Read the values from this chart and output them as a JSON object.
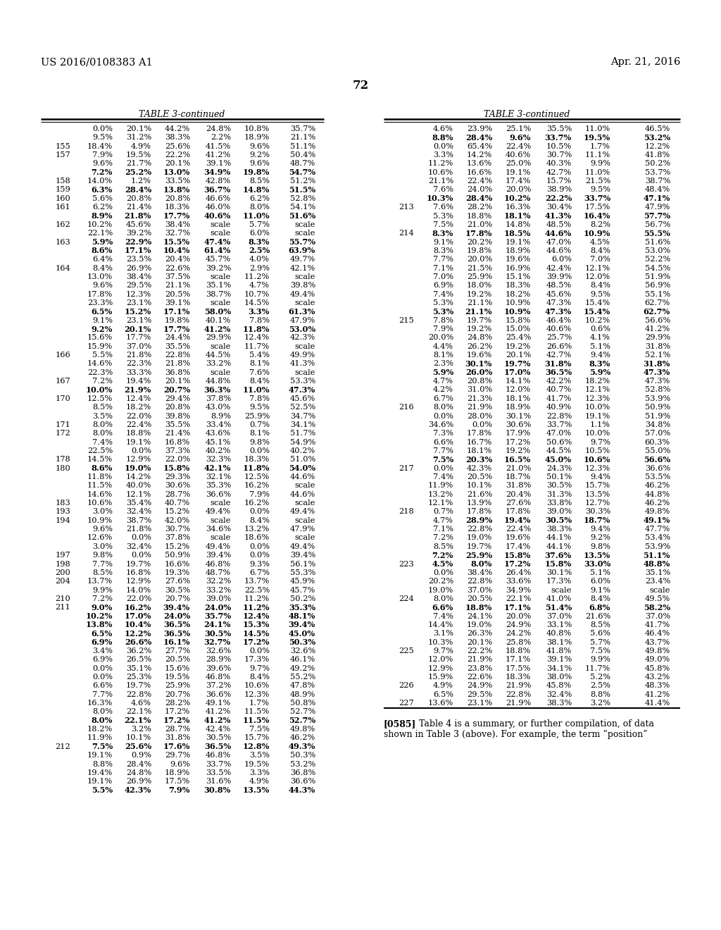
{
  "header_left": "US 2016/0108383 A1",
  "header_right": "Apr. 21, 2016",
  "page_number": "72",
  "table_title": "TABLE 3-continued",
  "background": "#ffffff",
  "left_table": [
    [
      "",
      "0.0%",
      "20.1%",
      "44.2%",
      "24.8%",
      "10.8%",
      "35.7%"
    ],
    [
      "",
      "9.5%",
      "31.2%",
      "38.3%",
      "2.2%",
      "18.9%",
      "21.1%"
    ],
    [
      "155",
      "18.4%",
      "4.9%",
      "25.6%",
      "41.5%",
      "9.6%",
      "51.1%"
    ],
    [
      "157",
      "7.9%",
      "19.5%",
      "22.2%",
      "41.2%",
      "9.2%",
      "50.4%"
    ],
    [
      "",
      "9.6%",
      "21.7%",
      "20.1%",
      "39.1%",
      "9.6%",
      "48.7%"
    ],
    [
      "",
      "B:7.2%",
      "B:25.2%",
      "B:13.0%",
      "B:34.9%",
      "B:19.8%",
      "B:54.7%"
    ],
    [
      "158",
      "14.0%",
      "1.2%",
      "33.5%",
      "42.8%",
      "8.5%",
      "51.2%"
    ],
    [
      "159",
      "B:6.3%",
      "B:28.4%",
      "B:13.8%",
      "B:36.7%",
      "B:14.8%",
      "B:51.5%"
    ],
    [
      "160",
      "5.6%",
      "20.8%",
      "20.8%",
      "46.6%",
      "6.2%",
      "52.8%"
    ],
    [
      "161",
      "6.2%",
      "21.4%",
      "18.3%",
      "46.0%",
      "8.0%",
      "54.1%"
    ],
    [
      "",
      "B:8.9%",
      "B:21.8%",
      "B:17.7%",
      "B:40.6%",
      "B:11.0%",
      "B:51.6%"
    ],
    [
      "162",
      "10.2%",
      "45.6%",
      "38.4%",
      "scale",
      "5.7%",
      "scale"
    ],
    [
      "",
      "22.1%",
      "39.2%",
      "32.7%",
      "scale",
      "6.0%",
      "scale"
    ],
    [
      "163",
      "B:5.9%",
      "B:22.9%",
      "B:15.5%",
      "B:47.4%",
      "B:8.3%",
      "B:55.7%"
    ],
    [
      "",
      "B:8.6%",
      "B:17.1%",
      "B:10.4%",
      "B:61.4%",
      "B:2.5%",
      "B:63.9%"
    ],
    [
      "",
      "6.4%",
      "23.5%",
      "20.4%",
      "45.7%",
      "4.0%",
      "49.7%"
    ],
    [
      "164",
      "8.4%",
      "26.9%",
      "22.6%",
      "39.2%",
      "2.9%",
      "42.1%"
    ],
    [
      "",
      "13.0%",
      "38.4%",
      "37.5%",
      "scale",
      "11.2%",
      "scale"
    ],
    [
      "",
      "9.6%",
      "29.5%",
      "21.1%",
      "35.1%",
      "4.7%",
      "39.8%"
    ],
    [
      "",
      "17.8%",
      "12.3%",
      "20.5%",
      "38.7%",
      "10.7%",
      "49.4%"
    ],
    [
      "",
      "23.3%",
      "23.1%",
      "39.1%",
      "scale",
      "14.5%",
      "scale"
    ],
    [
      "",
      "B:6.5%",
      "B:15.2%",
      "B:17.1%",
      "B:58.0%",
      "B:3.3%",
      "B:61.3%"
    ],
    [
      "",
      "9.1%",
      "23.1%",
      "19.8%",
      "40.1%",
      "7.8%",
      "47.9%"
    ],
    [
      "",
      "B:9.2%",
      "B:20.1%",
      "B:17.7%",
      "B:41.2%",
      "B:11.8%",
      "B:53.0%"
    ],
    [
      "",
      "15.6%",
      "17.7%",
      "24.4%",
      "29.9%",
      "12.4%",
      "42.3%"
    ],
    [
      "",
      "15.9%",
      "37.0%",
      "35.5%",
      "scale",
      "11.7%",
      "scale"
    ],
    [
      "166",
      "5.5%",
      "21.8%",
      "22.8%",
      "44.5%",
      "5.4%",
      "49.9%"
    ],
    [
      "",
      "14.6%",
      "22.3%",
      "21.8%",
      "33.2%",
      "8.1%",
      "41.3%"
    ],
    [
      "",
      "22.3%",
      "33.3%",
      "36.8%",
      "scale",
      "7.6%",
      "scale"
    ],
    [
      "167",
      "7.2%",
      "19.4%",
      "20.1%",
      "44.8%",
      "8.4%",
      "53.3%"
    ],
    [
      "",
      "B:10.0%",
      "B:21.9%",
      "B:20.7%",
      "B:36.3%",
      "B:11.0%",
      "B:47.3%"
    ],
    [
      "170",
      "12.5%",
      "12.4%",
      "29.4%",
      "37.8%",
      "7.8%",
      "45.6%"
    ],
    [
      "",
      "8.5%",
      "18.2%",
      "20.8%",
      "43.0%",
      "9.5%",
      "52.5%"
    ],
    [
      "",
      "3.5%",
      "22.0%",
      "39.8%",
      "8.9%",
      "25.9%",
      "34.7%"
    ],
    [
      "171",
      "8.0%",
      "22.4%",
      "35.5%",
      "33.4%",
      "0.7%",
      "34.1%"
    ],
    [
      "172",
      "8.0%",
      "18.8%",
      "21.4%",
      "43.6%",
      "8.1%",
      "51.7%"
    ],
    [
      "",
      "7.4%",
      "19.1%",
      "16.8%",
      "45.1%",
      "9.8%",
      "54.9%"
    ],
    [
      "",
      "22.5%",
      "0.0%",
      "37.3%",
      "40.2%",
      "0.0%",
      "40.2%"
    ],
    [
      "178",
      "14.5%",
      "12.9%",
      "22.0%",
      "32.3%",
      "18.3%",
      "51.0%"
    ],
    [
      "180",
      "B:8.6%",
      "B:19.0%",
      "B:15.8%",
      "B:42.1%",
      "B:11.8%",
      "B:54.0%"
    ],
    [
      "",
      "11.8%",
      "14.2%",
      "29.3%",
      "32.1%",
      "12.5%",
      "44.6%"
    ],
    [
      "",
      "11.5%",
      "40.0%",
      "30.6%",
      "35.3%",
      "16.2%",
      "scale"
    ],
    [
      "",
      "14.6%",
      "12.1%",
      "28.7%",
      "36.6%",
      "7.9%",
      "44.6%"
    ],
    [
      "183",
      "10.6%",
      "35.4%",
      "40.7%",
      "scale",
      "16.2%",
      "scale"
    ],
    [
      "193",
      "3.0%",
      "32.4%",
      "15.2%",
      "49.4%",
      "0.0%",
      "49.4%"
    ],
    [
      "194",
      "10.9%",
      "38.7%",
      "42.0%",
      "scale",
      "8.4%",
      "scale"
    ],
    [
      "",
      "9.6%",
      "21.8%",
      "30.7%",
      "34.6%",
      "13.2%",
      "47.9%"
    ],
    [
      "",
      "12.6%",
      "0.0%",
      "37.8%",
      "scale",
      "18.6%",
      "scale"
    ],
    [
      "",
      "3.0%",
      "32.4%",
      "15.2%",
      "49.4%",
      "0.0%",
      "49.4%"
    ],
    [
      "197",
      "9.8%",
      "0.0%",
      "50.9%",
      "39.4%",
      "0.0%",
      "39.4%"
    ],
    [
      "198",
      "7.7%",
      "19.7%",
      "16.6%",
      "46.8%",
      "9.3%",
      "56.1%"
    ],
    [
      "200",
      "8.5%",
      "16.8%",
      "19.3%",
      "48.7%",
      "6.7%",
      "55.3%"
    ],
    [
      "204",
      "13.7%",
      "12.9%",
      "27.6%",
      "32.2%",
      "13.7%",
      "45.9%"
    ],
    [
      "",
      "9.9%",
      "14.0%",
      "30.5%",
      "33.2%",
      "22.5%",
      "45.7%"
    ],
    [
      "210",
      "7.2%",
      "22.0%",
      "20.7%",
      "39.0%",
      "11.2%",
      "50.2%"
    ],
    [
      "211",
      "B:9.0%",
      "B:16.2%",
      "B:39.4%",
      "B:24.0%",
      "B:11.2%",
      "B:35.3%"
    ],
    [
      "",
      "B:10.2%",
      "B:17.0%",
      "B:24.0%",
      "B:35.7%",
      "B:12.4%",
      "B:48.1%"
    ],
    [
      "",
      "B:13.8%",
      "B:10.4%",
      "B:36.5%",
      "B:24.1%",
      "B:15.3%",
      "B:39.4%"
    ],
    [
      "",
      "B:6.5%",
      "B:12.2%",
      "B:36.5%",
      "B:30.5%",
      "B:14.5%",
      "B:45.0%"
    ],
    [
      "",
      "B:6.9%",
      "B:26.6%",
      "B:16.1%",
      "B:32.7%",
      "B:17.2%",
      "B:50.3%"
    ],
    [
      "",
      "3.4%",
      "36.2%",
      "27.7%",
      "32.6%",
      "0.0%",
      "32.6%"
    ],
    [
      "",
      "6.9%",
      "26.5%",
      "20.5%",
      "28.9%",
      "17.3%",
      "46.1%"
    ],
    [
      "",
      "0.0%",
      "35.1%",
      "15.6%",
      "39.6%",
      "9.7%",
      "49.2%"
    ],
    [
      "",
      "0.0%",
      "25.3%",
      "19.5%",
      "46.8%",
      "8.4%",
      "55.2%"
    ],
    [
      "",
      "6.6%",
      "19.7%",
      "25.9%",
      "37.2%",
      "10.6%",
      "47.8%"
    ],
    [
      "",
      "7.7%",
      "22.8%",
      "20.7%",
      "36.6%",
      "12.3%",
      "48.9%"
    ],
    [
      "",
      "16.3%",
      "4.6%",
      "28.2%",
      "49.1%",
      "1.7%",
      "50.8%"
    ],
    [
      "",
      "8.0%",
      "22.1%",
      "17.2%",
      "41.2%",
      "11.5%",
      "52.7%"
    ],
    [
      "",
      "B:8.0%",
      "B:22.1%",
      "B:17.2%",
      "B:41.2%",
      "B:11.5%",
      "B:52.7%"
    ],
    [
      "",
      "18.2%",
      "3.2%",
      "28.7%",
      "42.4%",
      "7.5%",
      "49.8%"
    ],
    [
      "",
      "11.9%",
      "10.1%",
      "31.8%",
      "30.5%",
      "15.7%",
      "46.2%"
    ],
    [
      "212",
      "B:7.5%",
      "B:25.6%",
      "B:17.6%",
      "B:36.5%",
      "B:12.8%",
      "B:49.3%"
    ],
    [
      "",
      "19.1%",
      "0.9%",
      "29.7%",
      "46.8%",
      "3.5%",
      "50.3%"
    ],
    [
      "",
      "8.8%",
      "28.4%",
      "9.6%",
      "33.7%",
      "19.5%",
      "53.2%"
    ],
    [
      "",
      "19.4%",
      "24.8%",
      "18.9%",
      "33.5%",
      "3.3%",
      "36.8%"
    ],
    [
      "",
      "19.1%",
      "26.9%",
      "17.5%",
      "31.6%",
      "4.9%",
      "36.6%"
    ],
    [
      "",
      "B:5.5%",
      "B:42.3%",
      "B:7.9%",
      "B:30.8%",
      "B:13.5%",
      "B:44.3%"
    ]
  ],
  "right_table": [
    [
      "",
      "4.6%",
      "23.9%",
      "25.1%",
      "35.5%",
      "11.0%",
      "46.5%"
    ],
    [
      "",
      "B:8.8%",
      "B:28.4%",
      "B:9.6%",
      "B:33.7%",
      "B:19.5%",
      "B:53.2%"
    ],
    [
      "",
      "0.0%",
      "65.4%",
      "22.4%",
      "10.5%",
      "1.7%",
      "12.2%"
    ],
    [
      "",
      "3.3%",
      "14.2%",
      "40.6%",
      "30.7%",
      "11.1%",
      "41.8%"
    ],
    [
      "",
      "11.2%",
      "13.6%",
      "25.0%",
      "40.3%",
      "9.9%",
      "50.2%"
    ],
    [
      "",
      "10.6%",
      "16.6%",
      "19.1%",
      "42.7%",
      "11.0%",
      "53.7%"
    ],
    [
      "",
      "21.1%",
      "22.4%",
      "17.4%",
      "15.7%",
      "21.5%",
      "38.7%"
    ],
    [
      "",
      "7.6%",
      "24.0%",
      "20.0%",
      "38.9%",
      "9.5%",
      "48.4%"
    ],
    [
      "",
      "B:10.3%",
      "B:28.4%",
      "B:10.2%",
      "B:22.2%",
      "B:33.7%",
      "B:47.1%"
    ],
    [
      "213",
      "7.6%",
      "28.2%",
      "16.3%",
      "30.4%",
      "17.5%",
      "47.9%"
    ],
    [
      "",
      "5.3%",
      "18.8%",
      "B:18.1%",
      "B:41.3%",
      "B:16.4%",
      "B:57.7%"
    ],
    [
      "",
      "7.5%",
      "21.0%",
      "14.8%",
      "48.5%",
      "8.2%",
      "56.7%"
    ],
    [
      "214",
      "B:8.3%",
      "B:17.8%",
      "B:18.5%",
      "B:44.6%",
      "B:10.9%",
      "B:55.5%"
    ],
    [
      "",
      "9.1%",
      "20.2%",
      "19.1%",
      "47.0%",
      "4.5%",
      "51.6%"
    ],
    [
      "",
      "8.3%",
      "19.8%",
      "18.9%",
      "44.6%",
      "8.4%",
      "53.0%"
    ],
    [
      "",
      "7.7%",
      "20.0%",
      "19.6%",
      "6.0%",
      "7.0%",
      "52.2%"
    ],
    [
      "",
      "7.1%",
      "21.5%",
      "16.9%",
      "42.4%",
      "12.1%",
      "54.5%"
    ],
    [
      "",
      "7.0%",
      "25.9%",
      "15.1%",
      "39.9%",
      "12.0%",
      "51.9%"
    ],
    [
      "",
      "6.9%",
      "18.0%",
      "18.3%",
      "48.5%",
      "8.4%",
      "56.9%"
    ],
    [
      "",
      "7.4%",
      "19.2%",
      "18.2%",
      "45.6%",
      "9.5%",
      "55.1%"
    ],
    [
      "",
      "5.3%",
      "21.1%",
      "10.9%",
      "47.3%",
      "15.4%",
      "62.7%"
    ],
    [
      "",
      "B:5.3%",
      "B:21.1%",
      "B:10.9%",
      "B:47.3%",
      "B:15.4%",
      "B:62.7%"
    ],
    [
      "215",
      "7.8%",
      "19.7%",
      "15.8%",
      "46.4%",
      "10.2%",
      "56.6%"
    ],
    [
      "",
      "7.9%",
      "19.2%",
      "15.0%",
      "40.6%",
      "0.6%",
      "41.2%"
    ],
    [
      "",
      "20.0%",
      "24.8%",
      "25.4%",
      "25.7%",
      "4.1%",
      "29.9%"
    ],
    [
      "",
      "4.4%",
      "26.2%",
      "19.2%",
      "26.6%",
      "5.1%",
      "31.8%"
    ],
    [
      "",
      "8.1%",
      "19.6%",
      "20.1%",
      "42.7%",
      "9.4%",
      "52.1%"
    ],
    [
      "",
      "2.3%",
      "B:30.1%",
      "B:19.7%",
      "B:31.8%",
      "B:8.3%",
      "B:31.8%"
    ],
    [
      "",
      "B:5.9%",
      "B:26.0%",
      "B:17.0%",
      "B:36.5%",
      "B:5.9%",
      "B:47.3%"
    ],
    [
      "",
      "4.7%",
      "20.8%",
      "14.1%",
      "42.2%",
      "18.2%",
      "47.3%"
    ],
    [
      "",
      "4.2%",
      "31.0%",
      "12.0%",
      "40.7%",
      "12.1%",
      "52.8%"
    ],
    [
      "",
      "6.7%",
      "21.3%",
      "18.1%",
      "41.7%",
      "12.3%",
      "53.9%"
    ],
    [
      "216",
      "8.0%",
      "21.9%",
      "18.9%",
      "40.9%",
      "10.0%",
      "50.9%"
    ],
    [
      "",
      "0.0%",
      "28.0%",
      "30.1%",
      "22.8%",
      "19.1%",
      "51.9%"
    ],
    [
      "",
      "34.6%",
      "0.0%",
      "30.6%",
      "33.7%",
      "1.1%",
      "34.8%"
    ],
    [
      "",
      "7.3%",
      "17.8%",
      "17.9%",
      "47.0%",
      "10.0%",
      "57.0%"
    ],
    [
      "",
      "6.6%",
      "16.7%",
      "17.2%",
      "50.6%",
      "9.7%",
      "60.3%"
    ],
    [
      "",
      "7.7%",
      "18.1%",
      "19.2%",
      "44.5%",
      "10.5%",
      "55.0%"
    ],
    [
      "",
      "B:7.5%",
      "B:20.3%",
      "B:16.5%",
      "B:45.0%",
      "B:10.6%",
      "B:56.6%"
    ],
    [
      "217",
      "0.0%",
      "42.3%",
      "21.0%",
      "24.3%",
      "12.3%",
      "36.6%"
    ],
    [
      "",
      "7.4%",
      "20.5%",
      "18.7%",
      "50.1%",
      "9.4%",
      "53.5%"
    ],
    [
      "",
      "11.9%",
      "10.1%",
      "31.8%",
      "30.5%",
      "15.7%",
      "46.2%"
    ],
    [
      "",
      "13.2%",
      "21.6%",
      "20.4%",
      "31.3%",
      "13.5%",
      "44.8%"
    ],
    [
      "",
      "12.1%",
      "13.9%",
      "27.6%",
      "33.8%",
      "12.7%",
      "46.2%"
    ],
    [
      "218",
      "0.7%",
      "17.8%",
      "17.8%",
      "39.0%",
      "30.3%",
      "49.8%"
    ],
    [
      "",
      "4.7%",
      "B:28.9%",
      "B:19.4%",
      "B:30.5%",
      "B:18.7%",
      "B:49.1%"
    ],
    [
      "",
      "7.1%",
      "22.8%",
      "22.4%",
      "38.3%",
      "9.4%",
      "47.7%"
    ],
    [
      "",
      "7.2%",
      "19.0%",
      "19.6%",
      "44.1%",
      "9.2%",
      "53.4%"
    ],
    [
      "",
      "8.5%",
      "19.7%",
      "17.4%",
      "44.1%",
      "9.8%",
      "53.9%"
    ],
    [
      "",
      "B:7.2%",
      "B:25.9%",
      "B:15.8%",
      "B:37.6%",
      "B:13.5%",
      "B:51.1%"
    ],
    [
      "223",
      "B:4.5%",
      "B:8.0%",
      "B:17.2%",
      "B:15.8%",
      "B:33.0%",
      "B:48.8%"
    ],
    [
      "",
      "0.0%",
      "38.4%",
      "26.4%",
      "30.1%",
      "5.1%",
      "35.1%"
    ],
    [
      "",
      "20.2%",
      "22.8%",
      "33.6%",
      "17.3%",
      "6.0%",
      "23.4%"
    ],
    [
      "",
      "19.0%",
      "37.0%",
      "34.9%",
      "scale",
      "9.1%",
      "scale"
    ],
    [
      "224",
      "8.0%",
      "20.5%",
      "22.1%",
      "41.0%",
      "8.4%",
      "49.5%"
    ],
    [
      "",
      "B:6.6%",
      "B:18.8%",
      "B:17.1%",
      "B:51.4%",
      "B:6.8%",
      "B:58.2%"
    ],
    [
      "",
      "7.4%",
      "24.1%",
      "20.0%",
      "37.0%",
      "21.6%",
      "37.0%"
    ],
    [
      "",
      "14.4%",
      "19.0%",
      "24.9%",
      "33.1%",
      "8.5%",
      "41.7%"
    ],
    [
      "",
      "3.1%",
      "26.3%",
      "24.2%",
      "40.8%",
      "5.6%",
      "46.4%"
    ],
    [
      "",
      "10.3%",
      "20.1%",
      "25.8%",
      "38.1%",
      "5.7%",
      "43.7%"
    ],
    [
      "225",
      "9.7%",
      "22.2%",
      "18.8%",
      "41.8%",
      "7.5%",
      "49.8%"
    ],
    [
      "",
      "12.0%",
      "21.9%",
      "17.1%",
      "39.1%",
      "9.9%",
      "49.0%"
    ],
    [
      "",
      "12.9%",
      "23.8%",
      "17.5%",
      "34.1%",
      "11.7%",
      "45.8%"
    ],
    [
      "",
      "15.9%",
      "22.6%",
      "18.3%",
      "38.0%",
      "5.2%",
      "43.2%"
    ],
    [
      "226",
      "4.9%",
      "24.9%",
      "21.9%",
      "45.8%",
      "2.5%",
      "48.3%"
    ],
    [
      "",
      "6.5%",
      "29.5%",
      "22.8%",
      "32.4%",
      "8.8%",
      "41.2%"
    ],
    [
      "227",
      "13.6%",
      "23.1%",
      "21.9%",
      "38.3%",
      "3.2%",
      "41.4%"
    ]
  ],
  "footnote_tag": "[0585]",
  "footnote_text": "   Table 4 is a summary, or further compilation, of data\nshown in Table 3 (above). For example, the term “position”"
}
